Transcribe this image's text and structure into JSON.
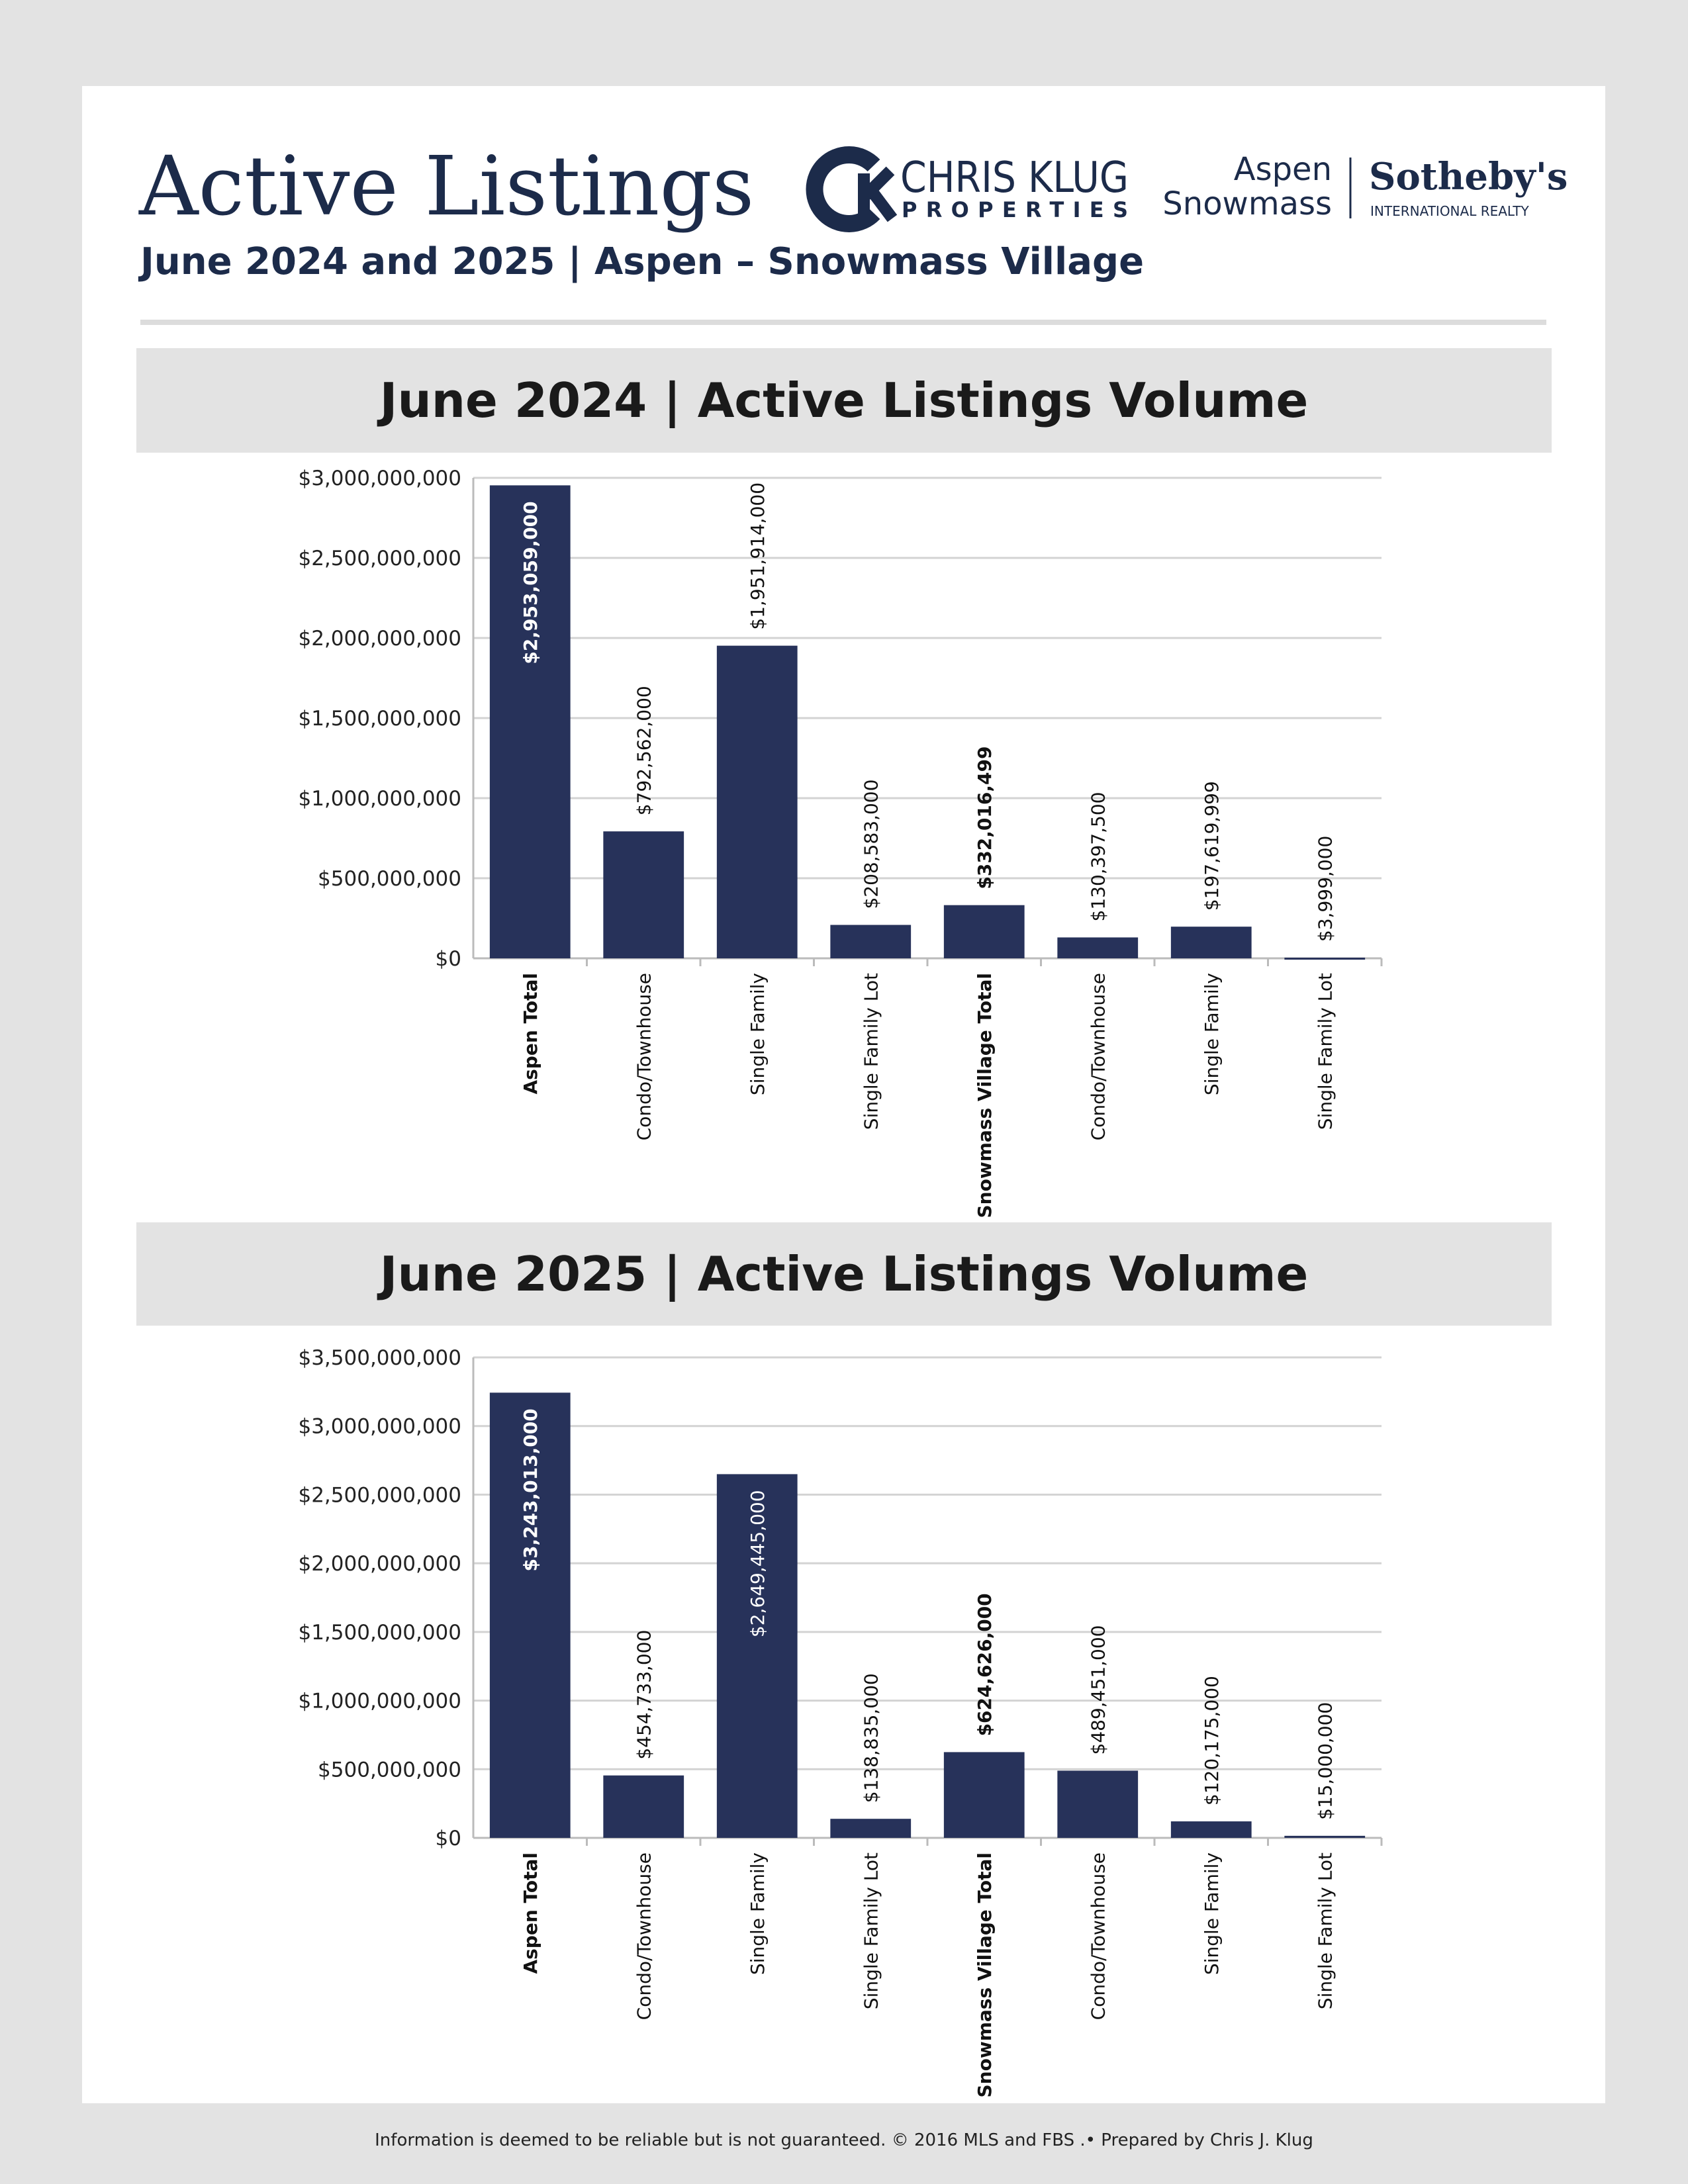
{
  "header": {
    "title": "Active Listings",
    "subtitle": "June 2024 and 2025 | Aspen – Snowmass Village"
  },
  "logos": {
    "brand": "CHRIS KLUG",
    "brand_sub": "PROPERTIES",
    "office_1": "Aspen",
    "office_2": "Snowmass",
    "company": "Sotheby's",
    "company_sub": "INTERNATIONAL REALTY"
  },
  "chart_data": [
    {
      "type": "bar",
      "title": "June 2024 | Active Listings Volume",
      "categories": [
        "Aspen Total",
        "Condo/Townhouse",
        "Single Family",
        "Single Family Lot",
        "Snowmass Village Total",
        "Condo/Townhouse",
        "Single Family",
        "Single Family Lot"
      ],
      "values": [
        2953059000,
        792562000,
        1951914000,
        208583000,
        332016499,
        130397500,
        197619999,
        3999000
      ],
      "value_labels": [
        "$2,953,059,000",
        "$792,562,000",
        "$1,951,914,000",
        "$208,583,000",
        "$332,016,499",
        "$130,397,500",
        "$197,619,999",
        "$3,999,000"
      ],
      "color": "#27325a",
      "grid": true,
      "ylim": [
        0,
        3000000000
      ],
      "yticks": [
        {
          "value": 0,
          "label": "$0"
        },
        {
          "value": 500000000,
          "label": "$500,000,000"
        },
        {
          "value": 1000000000,
          "label": "$1,000,000,000"
        },
        {
          "value": 1500000000,
          "label": "$1,500,000,000"
        },
        {
          "value": 2000000000,
          "label": "$2,000,000,000"
        },
        {
          "value": 2500000000,
          "label": "$2,500,000,000"
        },
        {
          "value": 3000000000,
          "label": "$3,000,000,000"
        }
      ]
    },
    {
      "type": "bar",
      "title": "June 2025 | Active Listings Volume",
      "categories": [
        "Aspen Total",
        "Condo/Townhouse",
        "Single Family",
        "Single Family Lot",
        "Snowmass Village Total",
        "Condo/Townhouse",
        "Single Family",
        "Single Family Lot"
      ],
      "values": [
        3243013000,
        454733000,
        2649445000,
        138835000,
        624626000,
        489451000,
        120175000,
        15000000
      ],
      "value_labels": [
        "$3,243,013,000",
        "$454,733,000",
        "$2,649,445,000",
        "$138,835,000",
        "$624,626,000",
        "$489,451,000",
        "$120,175,000",
        "$15,000,000"
      ],
      "color": "#27325a",
      "grid": true,
      "ylim": [
        0,
        3500000000
      ],
      "yticks": [
        {
          "value": 0,
          "label": "$0"
        },
        {
          "value": 500000000,
          "label": "$500,000,000"
        },
        {
          "value": 1000000000,
          "label": "$1,000,000,000"
        },
        {
          "value": 1500000000,
          "label": "$1,500,000,000"
        },
        {
          "value": 2000000000,
          "label": "$2,000,000,000"
        },
        {
          "value": 2500000000,
          "label": "$2,500,000,000"
        },
        {
          "value": 3000000000,
          "label": "$3,000,000,000"
        },
        {
          "value": 3500000000,
          "label": "$3,500,000,000"
        }
      ]
    }
  ],
  "footer": "Information is deemed to be reliable but is not guaranteed. © 2016 MLS and FBS .• Prepared by Chris J. Klug"
}
